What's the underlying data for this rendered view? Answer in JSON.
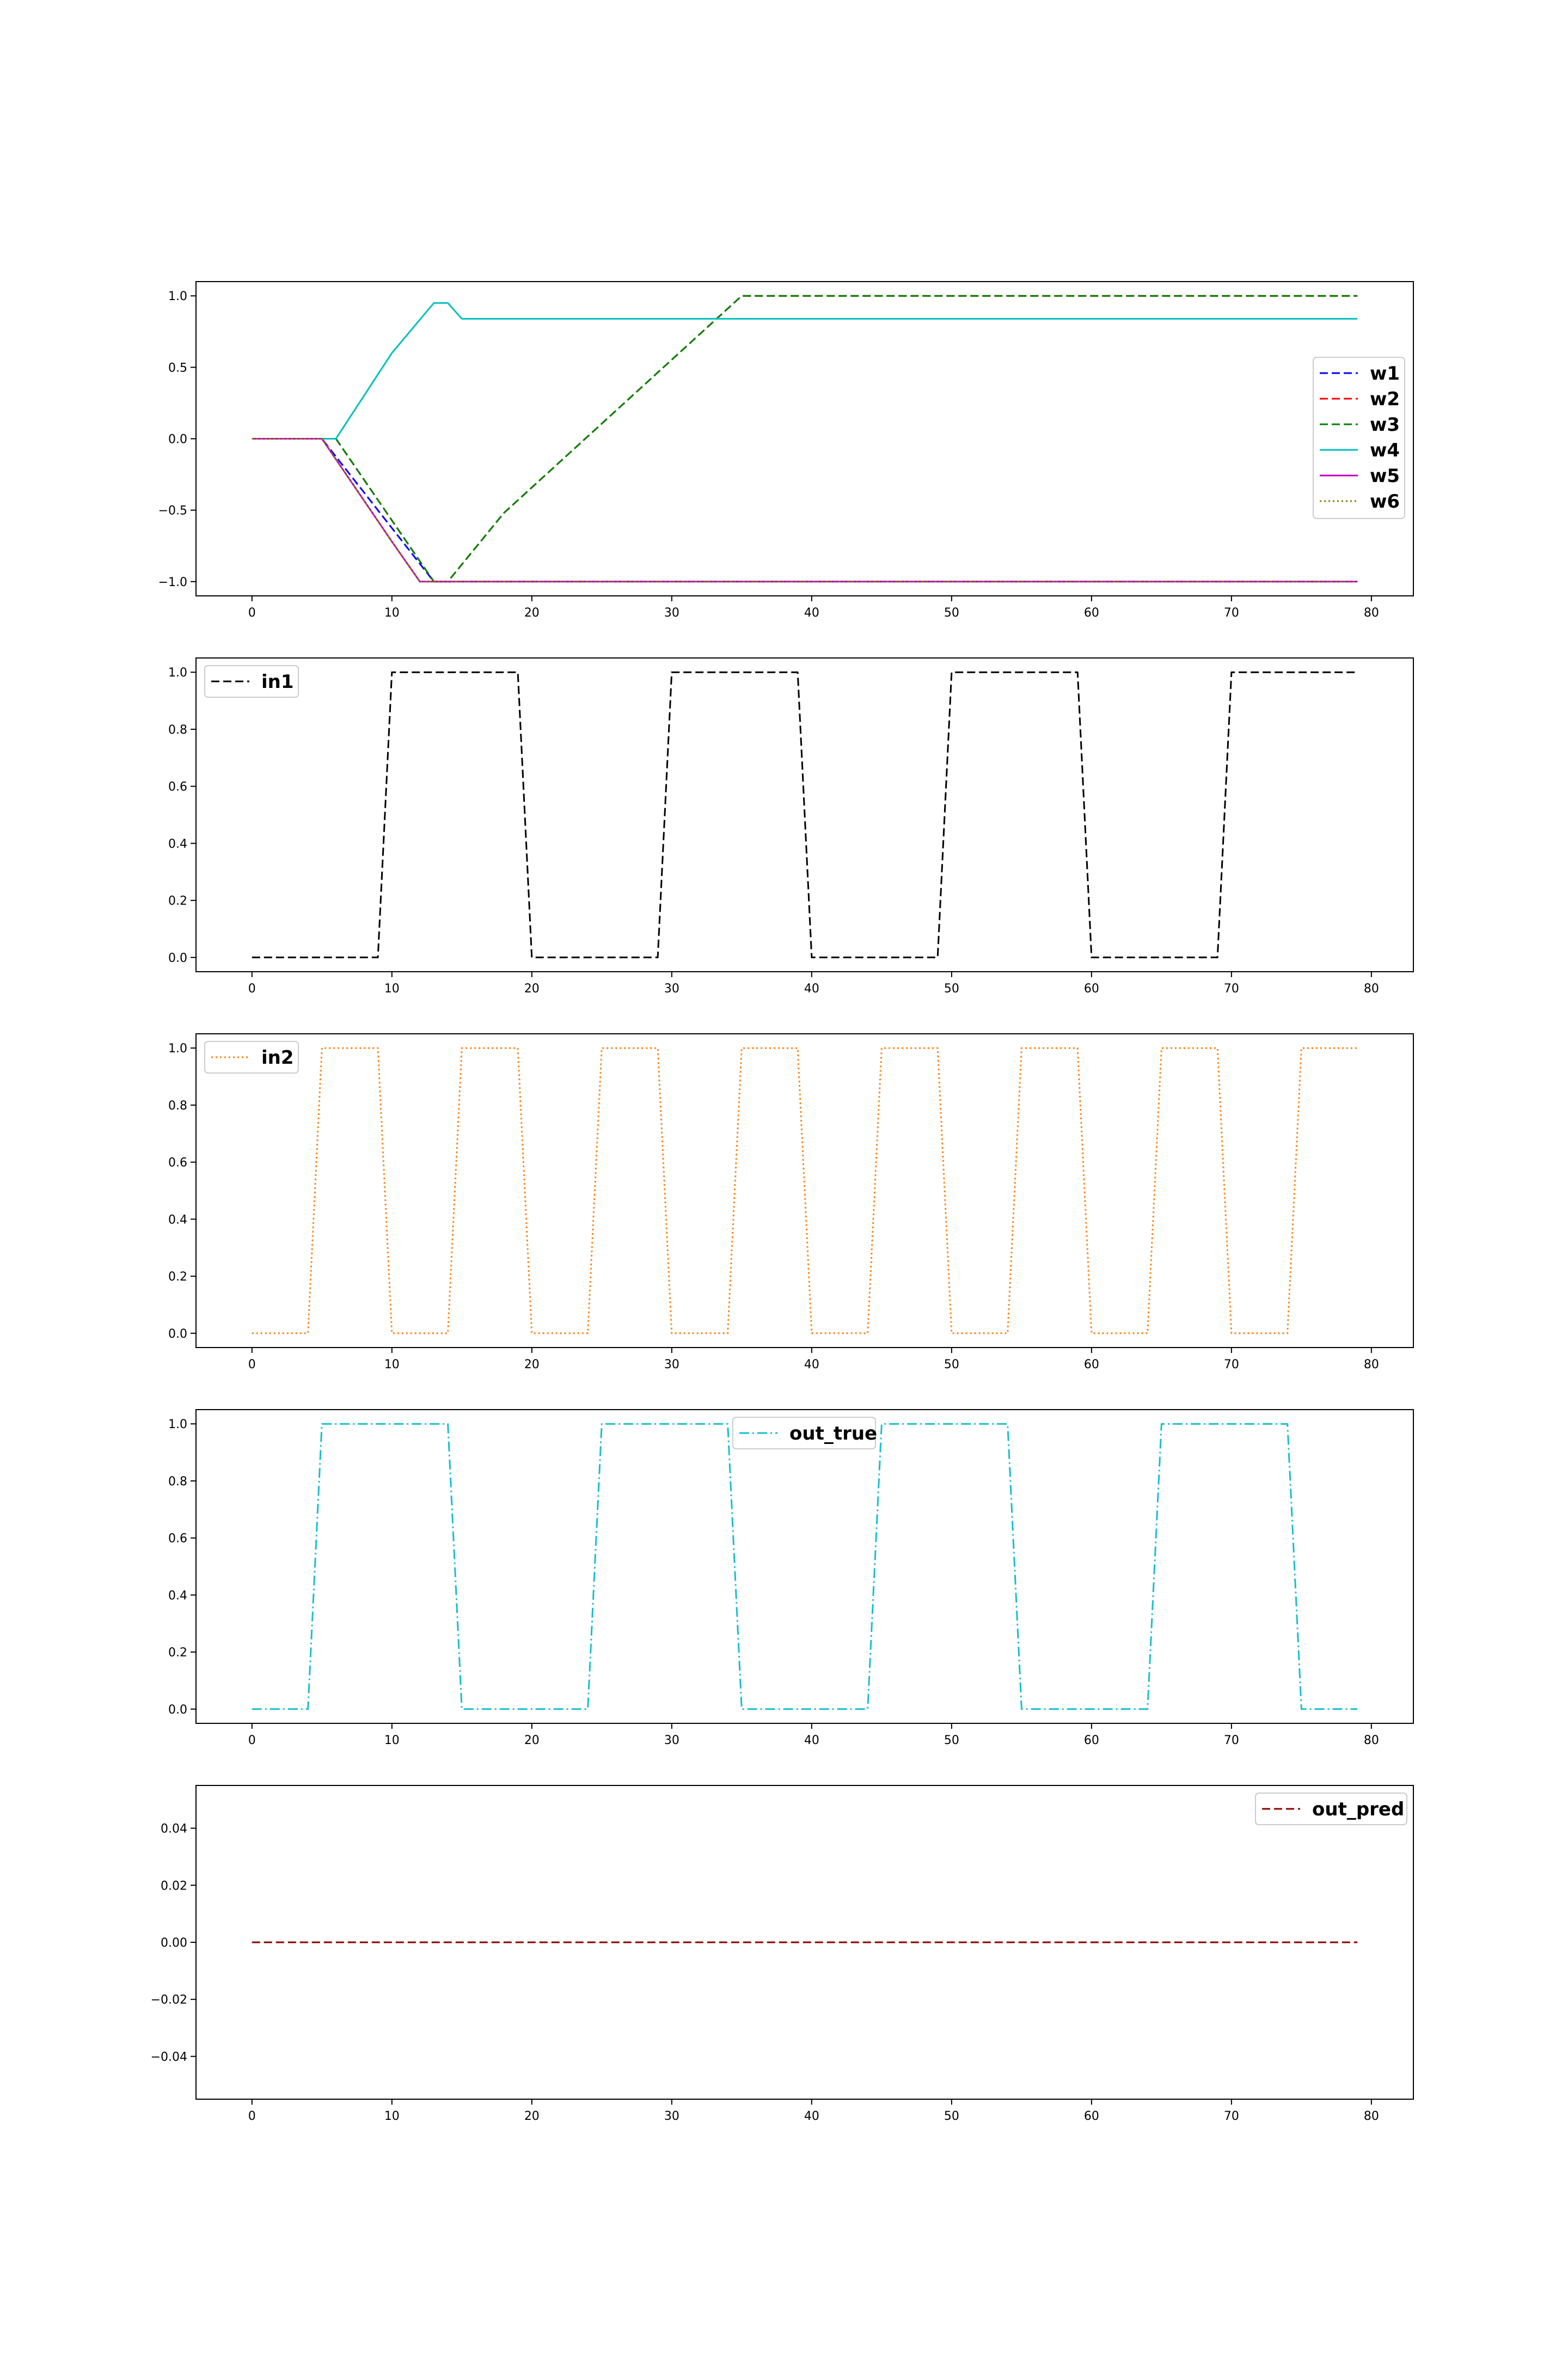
{
  "chart_data": [
    {
      "type": "line",
      "legend_placement": "center-right",
      "xlim": [
        -4,
        83
      ],
      "ylim": [
        -1.1,
        1.1
      ],
      "xticks": [
        0,
        10,
        20,
        30,
        40,
        50,
        60,
        70,
        80
      ],
      "xtick_labels": [
        "0",
        "10",
        "20",
        "30",
        "40",
        "50",
        "60",
        "70",
        "80"
      ],
      "yticks": [
        1.0,
        0.5,
        0.0,
        -0.5,
        -1.0
      ],
      "ytick_labels": [
        "1.0",
        "0.5",
        "0.0",
        "−0.5",
        "−1.0"
      ],
      "series": [
        {
          "name": "w1",
          "color": "#0000ff",
          "style": "dashed",
          "points": [
            [
              0,
              0
            ],
            [
              5,
              0
            ],
            [
              13,
              -1
            ],
            [
              79,
              -1
            ]
          ]
        },
        {
          "name": "w2",
          "color": "#ff0000",
          "style": "dashed",
          "points": [
            [
              0,
              0
            ],
            [
              6,
              0
            ],
            [
              13,
              -1
            ],
            [
              14,
              -1
            ],
            [
              18,
              -0.52
            ],
            [
              35,
              1
            ],
            [
              79,
              1
            ]
          ]
        },
        {
          "name": "w3",
          "color": "#008000",
          "style": "dashed",
          "points": [
            [
              0,
              0
            ],
            [
              6,
              0
            ],
            [
              13,
              -1
            ],
            [
              14,
              -1
            ],
            [
              18,
              -0.52
            ],
            [
              35,
              1
            ],
            [
              79,
              1
            ]
          ]
        },
        {
          "name": "w4",
          "color": "#00bfbf",
          "style": "solid",
          "points": [
            [
              0,
              0
            ],
            [
              6,
              0
            ],
            [
              10,
              0.6
            ],
            [
              13,
              0.95
            ],
            [
              14,
              0.95
            ],
            [
              15,
              0.84
            ],
            [
              79,
              0.84
            ]
          ]
        },
        {
          "name": "w5",
          "color": "#bf00bf",
          "style": "solid",
          "points": [
            [
              0,
              0
            ],
            [
              5,
              0
            ],
            [
              10,
              -0.72
            ],
            [
              12,
              -1
            ],
            [
              79,
              -1
            ]
          ]
        },
        {
          "name": "w6",
          "color": "#808000",
          "style": "dotted",
          "points": [
            [
              0,
              0
            ],
            [
              5,
              0
            ],
            [
              10,
              -0.72
            ],
            [
              12,
              -1
            ],
            [
              79,
              -1
            ]
          ]
        }
      ]
    },
    {
      "type": "line",
      "legend_placement": "upper-left",
      "xlim": [
        -4,
        83
      ],
      "ylim": [
        -0.05,
        1.05
      ],
      "xticks": [
        0,
        10,
        20,
        30,
        40,
        50,
        60,
        70,
        80
      ],
      "xtick_labels": [
        "0",
        "10",
        "20",
        "30",
        "40",
        "50",
        "60",
        "70",
        "80"
      ],
      "yticks": [
        1.0,
        0.8,
        0.6,
        0.4,
        0.2,
        0.0
      ],
      "ytick_labels": [
        "1.0",
        "0.8",
        "0.6",
        "0.4",
        "0.2",
        "0.0"
      ],
      "series": [
        {
          "name": "in1",
          "color": "#000000",
          "style": "dashed",
          "square": {
            "period": 20,
            "high_len": 10,
            "offset": 10,
            "x_end": 79
          }
        }
      ]
    },
    {
      "type": "line",
      "legend_placement": "upper-left",
      "xlim": [
        -4,
        83
      ],
      "ylim": [
        -0.05,
        1.05
      ],
      "xticks": [
        0,
        10,
        20,
        30,
        40,
        50,
        60,
        70,
        80
      ],
      "xtick_labels": [
        "0",
        "10",
        "20",
        "30",
        "40",
        "50",
        "60",
        "70",
        "80"
      ],
      "yticks": [
        1.0,
        0.8,
        0.6,
        0.4,
        0.2,
        0.0
      ],
      "ytick_labels": [
        "1.0",
        "0.8",
        "0.6",
        "0.4",
        "0.2",
        "0.0"
      ],
      "series": [
        {
          "name": "in2",
          "color": "#ff7f0e",
          "style": "dotted",
          "square": {
            "period": 10,
            "high_len": 5,
            "offset": 5,
            "x_end": 79
          }
        }
      ]
    },
    {
      "type": "line",
      "legend_placement": "upper-center",
      "xlim": [
        -4,
        83
      ],
      "ylim": [
        -0.05,
        1.05
      ],
      "xticks": [
        0,
        10,
        20,
        30,
        40,
        50,
        60,
        70,
        80
      ],
      "xtick_labels": [
        "0",
        "10",
        "20",
        "30",
        "40",
        "50",
        "60",
        "70",
        "80"
      ],
      "yticks": [
        1.0,
        0.8,
        0.6,
        0.4,
        0.2,
        0.0
      ],
      "ytick_labels": [
        "1.0",
        "0.8",
        "0.6",
        "0.4",
        "0.2",
        "0.0"
      ],
      "series": [
        {
          "name": "out_true",
          "color": "#17becf",
          "style": "dashdot",
          "square": {
            "period": 20,
            "high_len": 10,
            "offset": 5,
            "x_end": 79
          }
        }
      ]
    },
    {
      "type": "line",
      "legend_placement": "upper-right",
      "xlim": [
        -4,
        83
      ],
      "ylim": [
        -0.055,
        0.055
      ],
      "xticks": [
        0,
        10,
        20,
        30,
        40,
        50,
        60,
        70,
        80
      ],
      "xtick_labels": [
        "0",
        "10",
        "20",
        "30",
        "40",
        "50",
        "60",
        "70",
        "80"
      ],
      "yticks": [
        0.04,
        0.02,
        0.0,
        -0.02,
        -0.04
      ],
      "ytick_labels": [
        "0.04",
        "0.02",
        "0.00",
        "−0.02",
        "−0.04"
      ],
      "series": [
        {
          "name": "out_pred",
          "color": "#8b0000",
          "style": "dashed",
          "points": [
            [
              0,
              0
            ],
            [
              79,
              0
            ]
          ]
        }
      ]
    }
  ]
}
